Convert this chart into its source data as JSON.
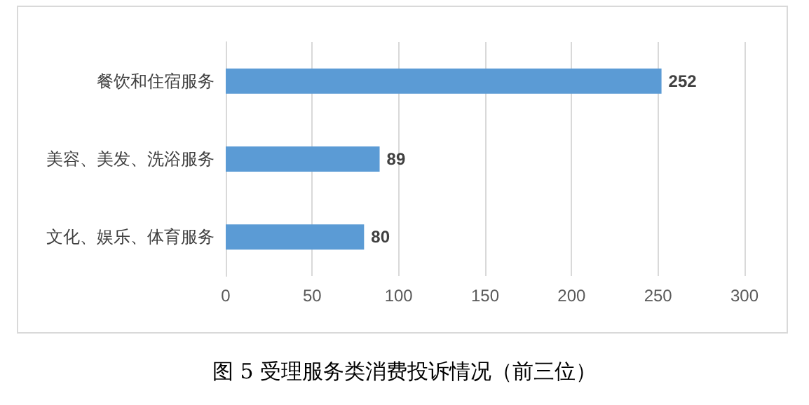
{
  "chart_data": {
    "type": "bar",
    "orientation": "horizontal",
    "title": "图 5  受理服务类消费投诉情况（前三位）",
    "categories": [
      "餐饮和住宿服务",
      "美容、美发、洗浴服务",
      "文化、娱乐、体育服务"
    ],
    "values": [
      252,
      89,
      80
    ],
    "color": "#5b9bd5",
    "xlim": [
      0,
      300
    ],
    "xticks": [
      0,
      50,
      100,
      150,
      200,
      250,
      300
    ],
    "grid": "x",
    "data_labels": true
  }
}
